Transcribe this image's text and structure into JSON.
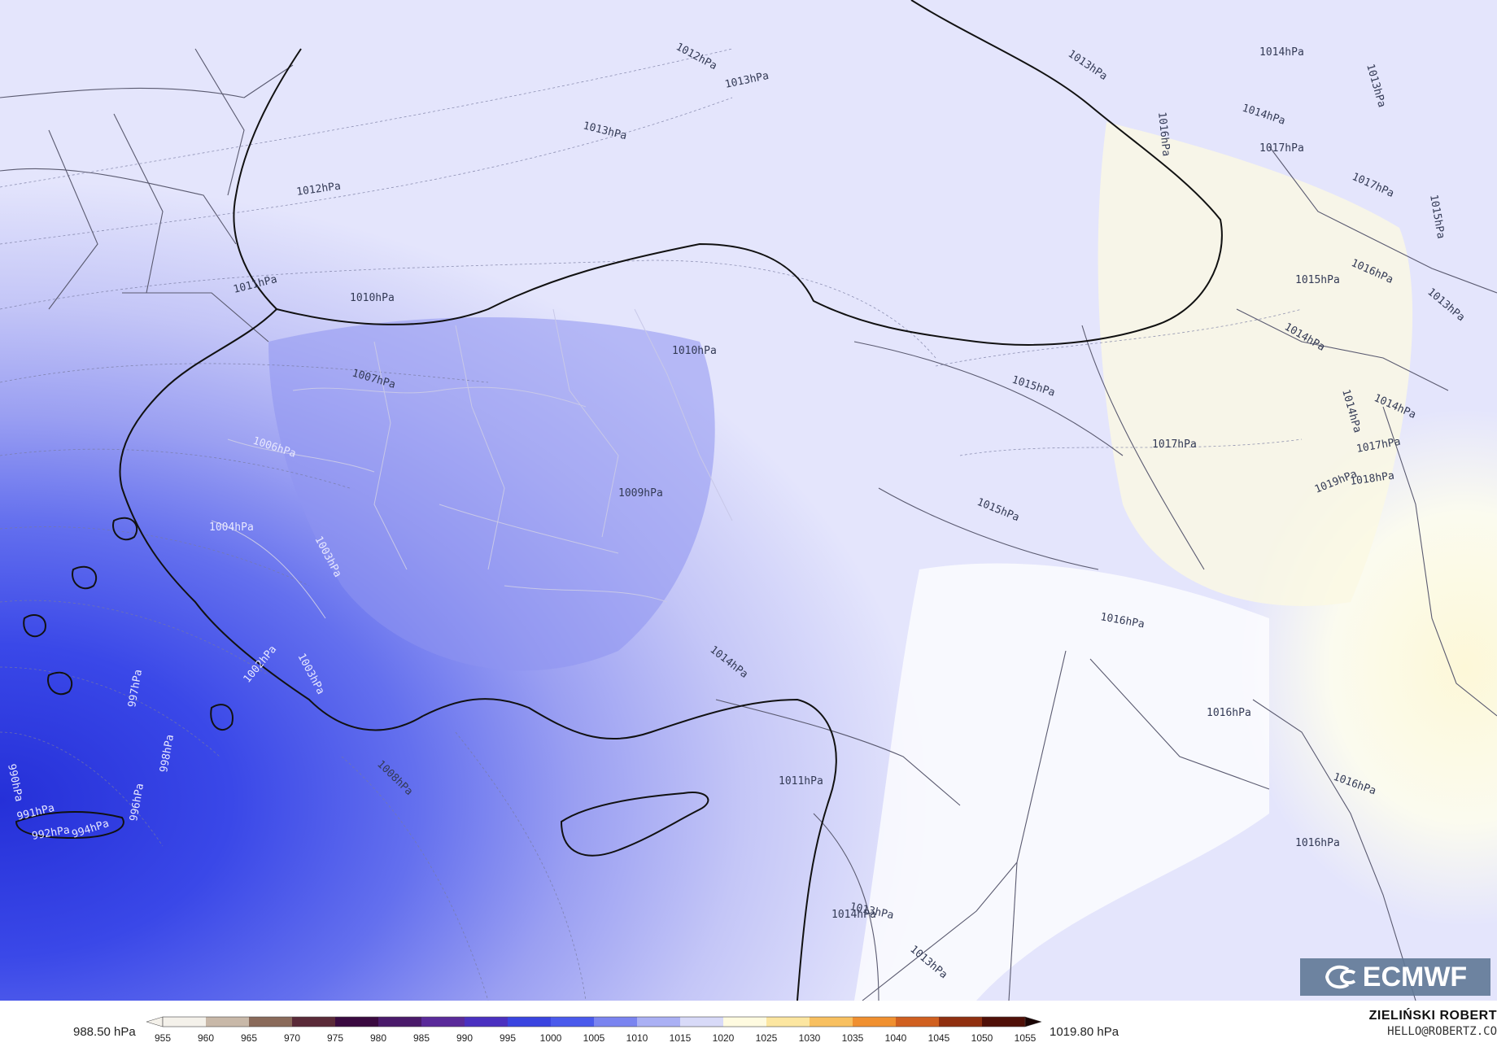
{
  "map": {
    "isobar_labels": [
      {
        "id": "a",
        "text": "1012hPa"
      },
      {
        "id": "b",
        "text": "1013hPa"
      },
      {
        "id": "c",
        "text": "1013hPa"
      },
      {
        "id": "d",
        "text": "1014hPa"
      },
      {
        "id": "e",
        "text": "1013hPa"
      },
      {
        "id": "f",
        "text": "1012hPa"
      },
      {
        "id": "g",
        "text": "1010hPa"
      },
      {
        "id": "h",
        "text": "1011hPa"
      },
      {
        "id": "i",
        "text": "1010hPa"
      },
      {
        "id": "j",
        "text": "1007hPa"
      },
      {
        "id": "k",
        "text": "1006hPa"
      },
      {
        "id": "l",
        "text": "1009hPa"
      },
      {
        "id": "m",
        "text": "1004hPa"
      },
      {
        "id": "n",
        "text": "1003hPa"
      },
      {
        "id": "o",
        "text": "1002hPa"
      },
      {
        "id": "p",
        "text": "1003hPa"
      },
      {
        "id": "q",
        "text": "1014hPa"
      },
      {
        "id": "r",
        "text": "1008hPa"
      },
      {
        "id": "s",
        "text": "1011hPa"
      },
      {
        "id": "t",
        "text": "1013hPa"
      },
      {
        "id": "u",
        "text": "1014hPa"
      },
      {
        "id": "v",
        "text": "1013hPa"
      },
      {
        "id": "w",
        "text": "1015hPa"
      },
      {
        "id": "x",
        "text": "1015hPa"
      },
      {
        "id": "y",
        "text": "1016hPa"
      },
      {
        "id": "z",
        "text": "1016hPa"
      },
      {
        "id": "aa",
        "text": "1016hPa"
      },
      {
        "id": "ab",
        "text": "1016hPa"
      },
      {
        "id": "ac",
        "text": "1017hPa"
      },
      {
        "id": "ad",
        "text": "1017hPa"
      },
      {
        "id": "ae",
        "text": "1017hPa"
      },
      {
        "id": "af",
        "text": "1017hPa"
      },
      {
        "id": "ag",
        "text": "1014hPa"
      },
      {
        "id": "ah",
        "text": "1014hPa"
      },
      {
        "id": "ai",
        "text": "1015hPa"
      },
      {
        "id": "aj",
        "text": "1015hPa"
      },
      {
        "id": "ak",
        "text": "1016hPa"
      },
      {
        "id": "al",
        "text": "1019hPa"
      },
      {
        "id": "am",
        "text": "1018hPa"
      },
      {
        "id": "an",
        "text": "1014hPa"
      },
      {
        "id": "ao",
        "text": "1014hPa"
      },
      {
        "id": "ap",
        "text": "1013hPa"
      },
      {
        "id": "aq",
        "text": "1016hPa"
      },
      {
        "id": "ar",
        "text": "1013hPa"
      },
      {
        "id": "as",
        "text": "997hPa"
      },
      {
        "id": "at",
        "text": "998hPa"
      },
      {
        "id": "au",
        "text": "996hPa"
      },
      {
        "id": "av",
        "text": "990hPa"
      },
      {
        "id": "aw",
        "text": "991hPa"
      },
      {
        "id": "ax",
        "text": "992hPa"
      },
      {
        "id": "ay",
        "text": "994hPa"
      }
    ],
    "colors": {
      "deep_low": "#2a3ae0",
      "low": "#5060f0",
      "mid": "#8c92f2",
      "light": "#b8bbf6",
      "pale": "#dcddfb",
      "near_white": "#f0f0fd",
      "warm": "#fdfbe6",
      "coast": "#111111",
      "border": "#666666"
    }
  },
  "legend": {
    "min_label": "988.50 hPa",
    "max_label": "1019.80 hPa",
    "ticks": [
      "955",
      "960",
      "965",
      "970",
      "975",
      "980",
      "985",
      "990",
      "995",
      "1000",
      "1005",
      "1010",
      "1015",
      "1020",
      "1025",
      "1030",
      "1035",
      "1040",
      "1045",
      "1050",
      "1055"
    ],
    "colors": [
      "#f4f1ea",
      "#c8b8a8",
      "#8a6a5a",
      "#5a2a38",
      "#3a0a40",
      "#4a1a6a",
      "#5a2a9a",
      "#4a30c0",
      "#3a44e0",
      "#4a5aec",
      "#7a84f0",
      "#aab0f4",
      "#d8daf8",
      "#fffbe0",
      "#fce6a0",
      "#f8c060",
      "#f09030",
      "#d06020",
      "#903010",
      "#501008",
      "#1a0404"
    ]
  },
  "branding": {
    "logo_text": "ECMWF",
    "author": "ZIELIŃSKI ROBERT",
    "email": "HELLO@ROBERTZ.CO"
  }
}
